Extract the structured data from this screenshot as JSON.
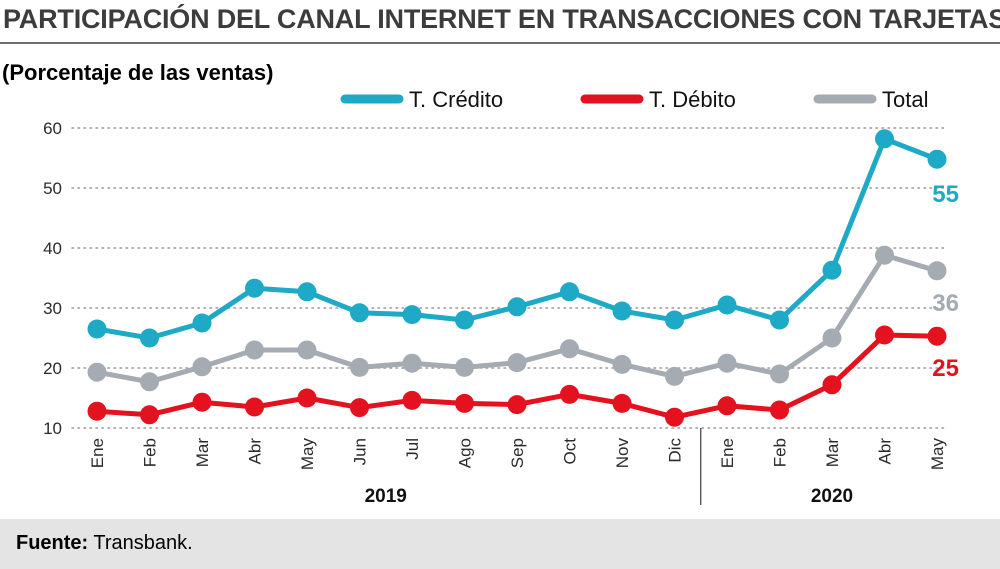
{
  "chart_data": {
    "type": "line",
    "title": "PARTICIPACIÓN DEL CANAL INTERNET EN TRANSACCIONES CON TARJETAS",
    "subtitle": "(Porcentaje de las ventas)",
    "categories": [
      "Ene",
      "Feb",
      "Mar",
      "Abr",
      "May",
      "Jun",
      "Jul",
      "Ago",
      "Sep",
      "Oct",
      "Nov",
      "Dic",
      "Ene",
      "Feb",
      "Mar",
      "Abr",
      "May"
    ],
    "year_groups": [
      {
        "label": "2019",
        "start": 0,
        "end": 11
      },
      {
        "label": "2020",
        "start": 12,
        "end": 16
      }
    ],
    "series": [
      {
        "name": "T. Crédito",
        "color": "#1ea9c6",
        "end_label": "55",
        "values": [
          26.5,
          25,
          27.5,
          33.3,
          32.7,
          29.2,
          28.9,
          28,
          30.2,
          32.7,
          29.5,
          28,
          30.5,
          28,
          36.3,
          58.2,
          54.8
        ]
      },
      {
        "name": "T. Débito",
        "color": "#e3121e",
        "end_label": "25",
        "values": [
          12.8,
          12.2,
          14.3,
          13.5,
          15,
          13.4,
          14.6,
          14.1,
          13.9,
          15.6,
          14.1,
          11.8,
          13.7,
          13,
          17.2,
          25.5,
          25.3
        ]
      },
      {
        "name": "Total",
        "color": "#a4abb2",
        "end_label": "36",
        "values": [
          19.3,
          17.7,
          20.2,
          23,
          23,
          20.1,
          20.8,
          20.1,
          20.9,
          23.2,
          20.6,
          18.6,
          20.8,
          19,
          25,
          38.8,
          36.2
        ]
      }
    ],
    "ylim": [
      10,
      60
    ],
    "yticks": [
      10,
      20,
      30,
      40,
      50,
      60
    ],
    "grid": true,
    "legend_position": "top"
  },
  "footer": {
    "source_label": "Fuente:",
    "source_text": "Transbank."
  }
}
